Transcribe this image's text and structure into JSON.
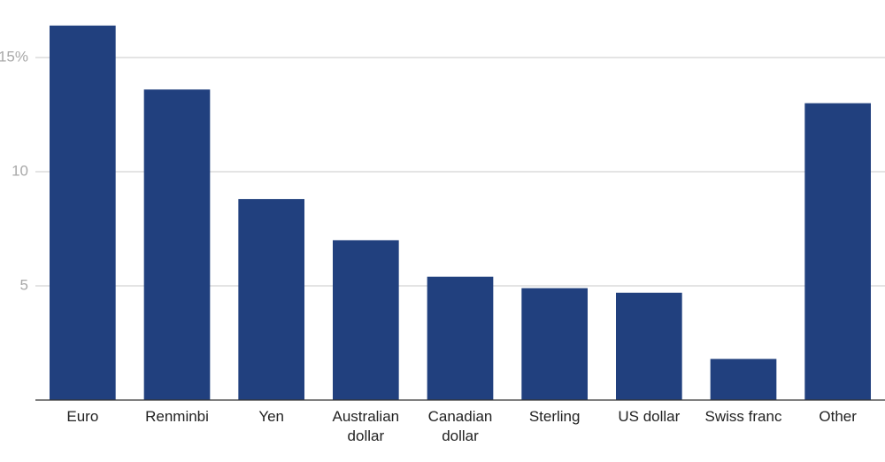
{
  "chart_data": {
    "type": "bar",
    "categories": [
      "Euro",
      "Renminbi",
      "Yen",
      "Australian dollar",
      "Canadian dollar",
      "Sterling",
      "US dollar",
      "Swiss franc",
      "Other"
    ],
    "values": [
      16.4,
      13.6,
      8.8,
      7.0,
      5.4,
      4.9,
      4.7,
      1.8,
      13.0
    ],
    "color": "#21407e",
    "ylim": [
      0,
      17
    ],
    "yticks": [
      5,
      10,
      {
        "value": 15,
        "label": "15%"
      }
    ],
    "grid": true
  }
}
